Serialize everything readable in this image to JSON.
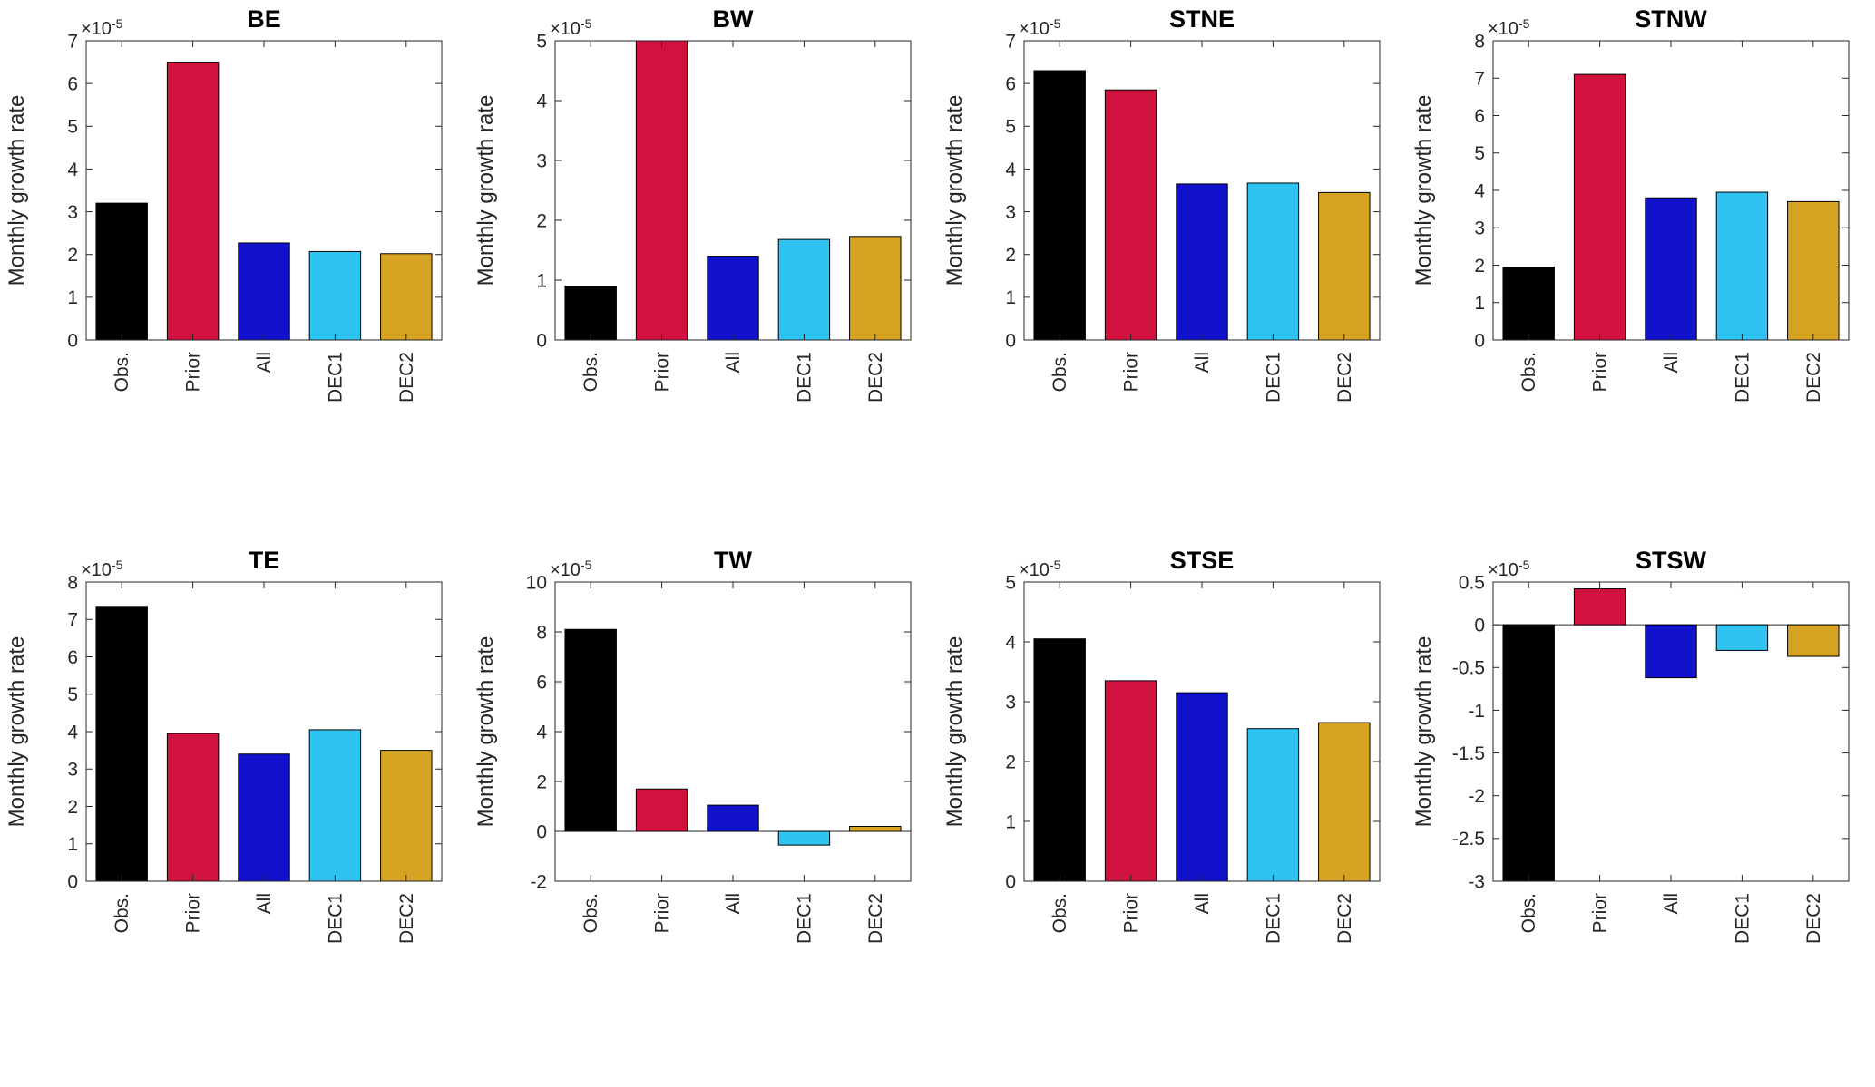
{
  "figure": {
    "background_color": "#ffffff",
    "axis_color": "#262626",
    "bar_edge_color": "#000000",
    "bar_colors": [
      "#000000",
      "#d2123e",
      "#1212cd",
      "#2ec3f1",
      "#d7a322"
    ],
    "series": [
      "Obs.",
      "Prior",
      "All",
      "DEC1",
      "DEC2"
    ],
    "offset": {
      "base": "×10",
      "exponent": "-5"
    },
    "value_scale": "1e-5",
    "layout": {
      "rows": 2,
      "cols": 4,
      "grid": "off",
      "legend": "none"
    }
  },
  "chart_data": [
    {
      "type": "bar",
      "title": "BE",
      "ylabel": "Monthly growth rate",
      "categories": [
        "Obs.",
        "Prior",
        "All",
        "DEC1",
        "DEC2"
      ],
      "values": [
        3.2,
        6.5,
        2.27,
        2.07,
        2.02
      ],
      "ylim": [
        0,
        7
      ],
      "yticks": [
        0,
        1,
        2,
        3,
        4,
        5,
        6,
        7
      ],
      "unit": "x1e-5"
    },
    {
      "type": "bar",
      "title": "BW",
      "ylabel": "Monthly growth rate",
      "categories": [
        "Obs.",
        "Prior",
        "All",
        "DEC1",
        "DEC2"
      ],
      "values": [
        0.9,
        5.0,
        1.4,
        1.68,
        1.73
      ],
      "ylim": [
        0,
        5
      ],
      "yticks": [
        0,
        1,
        2,
        3,
        4,
        5
      ],
      "unit": "x1e-5"
    },
    {
      "type": "bar",
      "title": "STNE",
      "ylabel": "Monthly growth rate",
      "categories": [
        "Obs.",
        "Prior",
        "All",
        "DEC1",
        "DEC2"
      ],
      "values": [
        6.3,
        5.85,
        3.65,
        3.67,
        3.45
      ],
      "ylim": [
        0,
        7
      ],
      "yticks": [
        0,
        1,
        2,
        3,
        4,
        5,
        6,
        7
      ],
      "unit": "x1e-5"
    },
    {
      "type": "bar",
      "title": "STNW",
      "ylabel": "Monthly growth rate",
      "categories": [
        "Obs.",
        "Prior",
        "All",
        "DEC1",
        "DEC2"
      ],
      "values": [
        1.95,
        7.1,
        3.8,
        3.95,
        3.7
      ],
      "ylim": [
        0,
        8
      ],
      "yticks": [
        0,
        1,
        2,
        3,
        4,
        5,
        6,
        7,
        8
      ],
      "unit": "x1e-5"
    },
    {
      "type": "bar",
      "title": "TE",
      "ylabel": "Monthly growth rate",
      "categories": [
        "Obs.",
        "Prior",
        "All",
        "DEC1",
        "DEC2"
      ],
      "values": [
        7.35,
        3.95,
        3.4,
        4.05,
        3.5
      ],
      "ylim": [
        0,
        8
      ],
      "yticks": [
        0,
        1,
        2,
        3,
        4,
        5,
        6,
        7,
        8
      ],
      "unit": "x1e-5"
    },
    {
      "type": "bar",
      "title": "TW",
      "ylabel": "Monthly growth rate",
      "categories": [
        "Obs.",
        "Prior",
        "All",
        "DEC1",
        "DEC2"
      ],
      "values": [
        8.1,
        1.7,
        1.05,
        -0.55,
        0.2
      ],
      "ylim": [
        -2,
        10
      ],
      "yticks": [
        -2,
        0,
        2,
        4,
        6,
        8,
        10
      ],
      "unit": "x1e-5"
    },
    {
      "type": "bar",
      "title": "STSE",
      "ylabel": "Monthly growth rate",
      "categories": [
        "Obs.",
        "Prior",
        "All",
        "DEC1",
        "DEC2"
      ],
      "values": [
        4.05,
        3.35,
        3.15,
        2.55,
        2.65
      ],
      "ylim": [
        0,
        5
      ],
      "yticks": [
        0,
        1,
        2,
        3,
        4,
        5
      ],
      "unit": "x1e-5"
    },
    {
      "type": "bar",
      "title": "STSW",
      "ylabel": "Monthly growth rate",
      "categories": [
        "Obs.",
        "Prior",
        "All",
        "DEC1",
        "DEC2"
      ],
      "values": [
        -3.0,
        0.42,
        -0.62,
        -0.3,
        -0.37
      ],
      "ylim": [
        -3,
        0.5
      ],
      "yticks": [
        -3,
        -2.5,
        -2,
        -1.5,
        -1,
        -0.5,
        0,
        0.5
      ],
      "unit": "x1e-5"
    }
  ]
}
